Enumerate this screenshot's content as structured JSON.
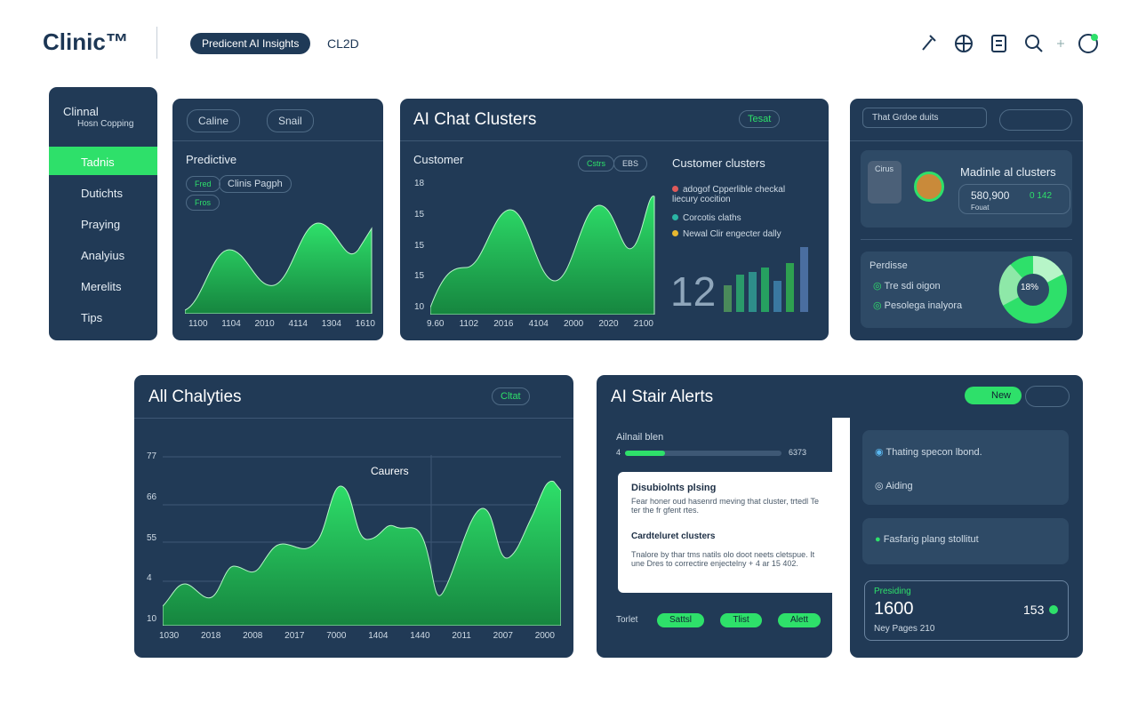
{
  "header": {
    "logo": "Clinic™",
    "pill": "Predicent AI Insights",
    "tag": "CL2D"
  },
  "sidebar": {
    "title": "Clinnal",
    "subtitle": "Hosn Copping",
    "items": [
      "Tadnis",
      "Dutichts",
      "Praying",
      "Analyius",
      "Merelits",
      "Tips"
    ]
  },
  "predictive": {
    "filters": [
      "Caline",
      "Snail"
    ],
    "title": "Predictive",
    "chips": [
      "Fred",
      "Clinis Pagph",
      "Fros"
    ],
    "x_labels": [
      "1100",
      "1104",
      "2010",
      "4114",
      "1304",
      "1610"
    ]
  },
  "chat_clusters": {
    "title": "AI Chat Clusters",
    "button": "Tesat",
    "chart_title": "Customer",
    "chips": [
      "Cstrs",
      "EBS"
    ],
    "y_labels": [
      "18",
      "15",
      "15",
      "15",
      "10"
    ],
    "x_labels": [
      "9.60",
      "1102",
      "2016",
      "4104",
      "2000",
      "2020",
      "2100"
    ],
    "legend_title": "Customer clusters",
    "legend": [
      "adogof Cpperlible checkal liecury cocition",
      "Corcotis claths",
      "Newal Clir engecter dally"
    ],
    "big_number": "12"
  },
  "overview": {
    "search": "That Grdoe duits",
    "card_label": "Cirus",
    "card_title": "Madinle al clusters",
    "card_value": "580,900",
    "card_chip": "0 142",
    "card_sub": "Fouat",
    "section": "Perdisse",
    "items": [
      "Tre sdi oigon",
      "Pesolega inalyora"
    ],
    "donut": "18%"
  },
  "chalyties": {
    "title": "All Chalyties",
    "button": "Cltat",
    "annotation": "Caurers",
    "y_labels": [
      "77",
      "66",
      "55",
      "4",
      "10"
    ],
    "x_labels": [
      "1030",
      "2018",
      "2008",
      "2017",
      "7000",
      "1404",
      "1440",
      "2011",
      "2007",
      "2000"
    ]
  },
  "alerts": {
    "title": "AI Stair Alerts",
    "button": "New",
    "progress_label": "Ailnail blen",
    "progress_start": "4",
    "progress_end": "6373",
    "popup_title": "Disubiolnts plsing",
    "popup_text": "Fear honer oud hasenrd meving that cluster, trtedl Te ter the fr gfent rtes.",
    "popup_sub": "Cardteluret clusters",
    "popup_text2": "Tnalore by thar tms natils olo doot neets cletspue. It une Dres to correctire enjectelny + 4 ar 15 402.",
    "footer_label": "Torlet",
    "footer_pills": [
      "Sattsl",
      "Tlist",
      "Alett"
    ],
    "cards": [
      "Thating specon lbond.",
      "Aiding",
      "Fasfarig plang stollitut"
    ],
    "presiding": {
      "label": "Presiding",
      "value": "1600",
      "value2": "153",
      "sub": "Ney Pages 210"
    }
  }
}
